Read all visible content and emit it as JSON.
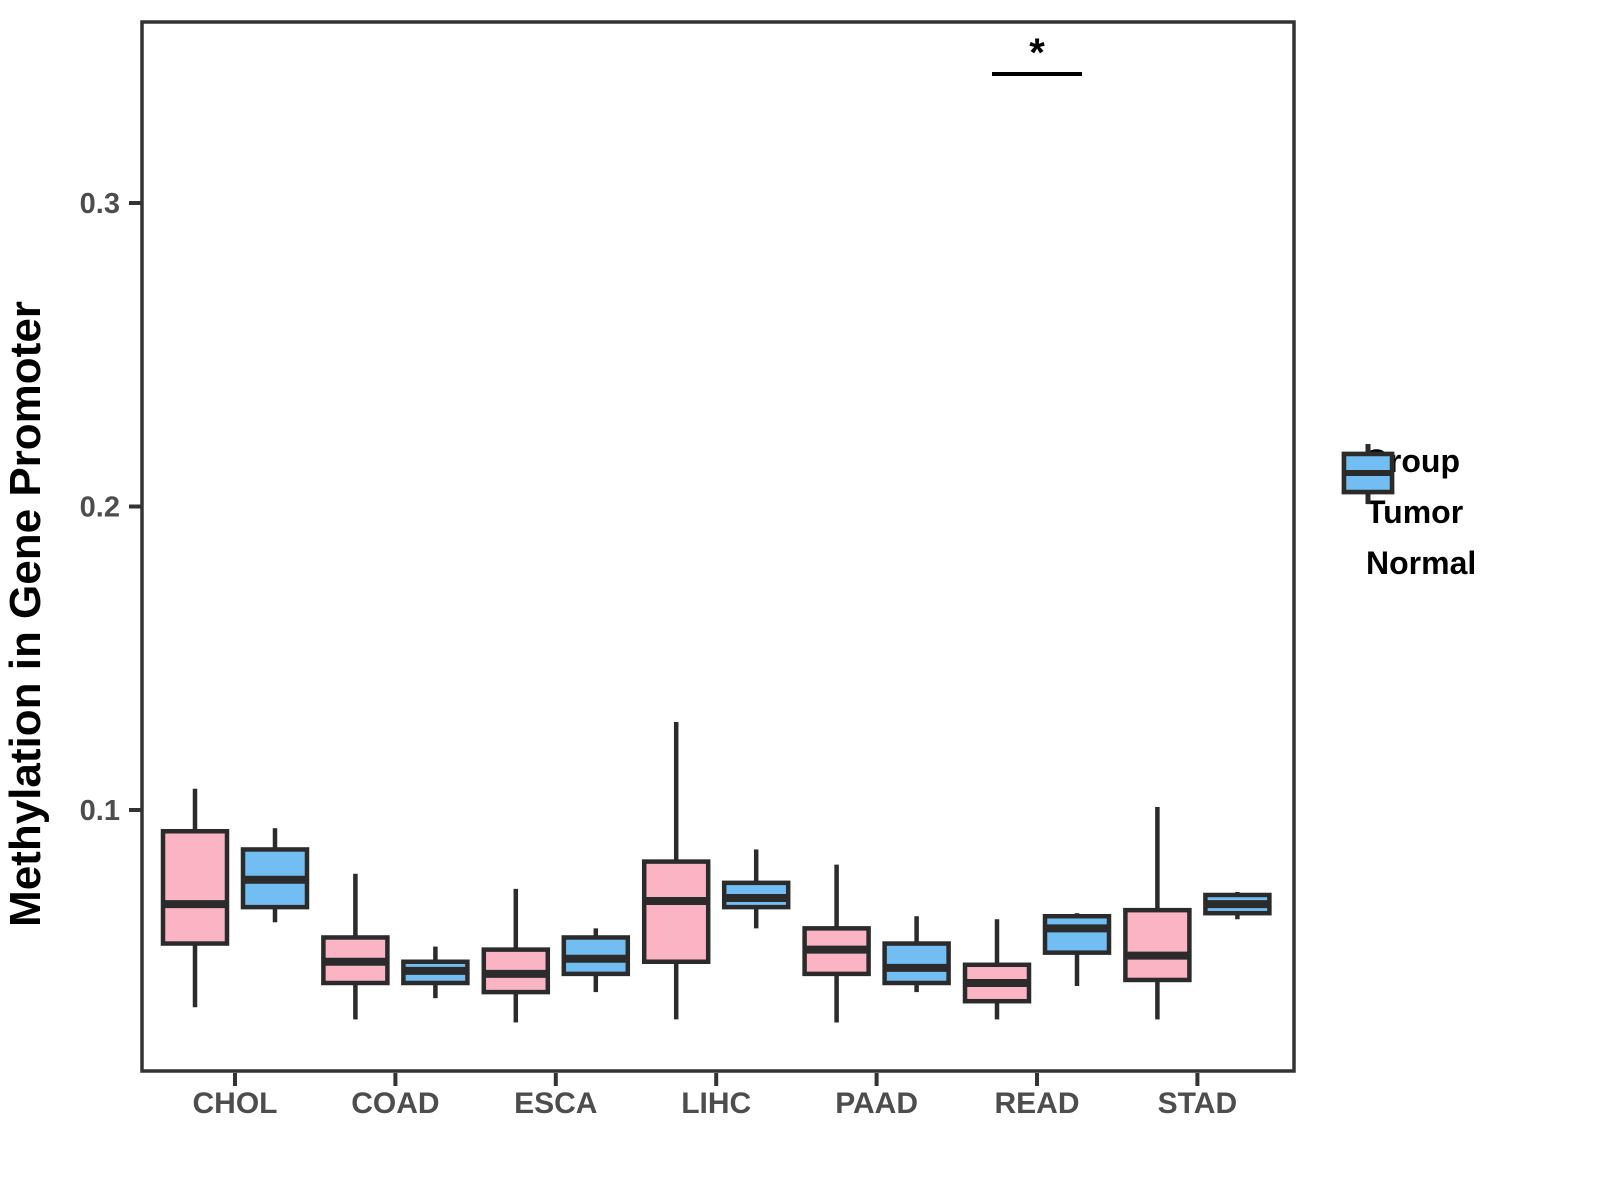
{
  "legend": {
    "title": "Group",
    "entries": [
      {
        "label": "Tumor",
        "color": "#FAB4C4"
      },
      {
        "label": "Normal",
        "color": "#72BEF2"
      }
    ]
  },
  "style_colors": {
    "box_border": "#2B2B2B",
    "axis": "#333333",
    "axis_text": "#4D4D4D",
    "significance": "#000000"
  },
  "chart_data": {
    "type": "boxplot",
    "title": "",
    "xlabel": "",
    "ylabel": "Methylation in Gene Promoter",
    "categories": [
      "CHOL",
      "COAD",
      "ESCA",
      "LIHC",
      "PAAD",
      "READ",
      "STAD"
    ],
    "yticks": [
      0.1,
      0.2,
      0.3
    ],
    "ytick_labels": [
      "0.1",
      "0.2",
      "0.3"
    ],
    "ylim": [
      0.014,
      0.36
    ],
    "grid": "off",
    "legend_position": "right",
    "series": [
      {
        "name": "Tumor",
        "color": "#FAB4C4",
        "boxes": [
          {
            "min": 0.035,
            "q1": 0.056,
            "median": 0.069,
            "q3": 0.093,
            "max": 0.107
          },
          {
            "min": 0.031,
            "q1": 0.043,
            "median": 0.05,
            "q3": 0.058,
            "max": 0.079
          },
          {
            "min": 0.03,
            "q1": 0.04,
            "median": 0.046,
            "q3": 0.054,
            "max": 0.074
          },
          {
            "min": 0.031,
            "q1": 0.05,
            "median": 0.07,
            "q3": 0.083,
            "max": 0.129
          },
          {
            "min": 0.03,
            "q1": 0.046,
            "median": 0.054,
            "q3": 0.061,
            "max": 0.082
          },
          {
            "min": 0.031,
            "q1": 0.037,
            "median": 0.043,
            "q3": 0.049,
            "max": 0.064
          },
          {
            "min": 0.031,
            "q1": 0.044,
            "median": 0.052,
            "q3": 0.067,
            "max": 0.101
          }
        ]
      },
      {
        "name": "Normal",
        "color": "#72BEF2",
        "boxes": [
          {
            "min": 0.063,
            "q1": 0.068,
            "median": 0.077,
            "q3": 0.087,
            "max": 0.094
          },
          {
            "min": 0.038,
            "q1": 0.043,
            "median": 0.047,
            "q3": 0.05,
            "max": 0.055
          },
          {
            "min": 0.04,
            "q1": 0.046,
            "median": 0.051,
            "q3": 0.058,
            "max": 0.061
          },
          {
            "min": 0.061,
            "q1": 0.068,
            "median": 0.071,
            "q3": 0.076,
            "max": 0.087
          },
          {
            "min": 0.04,
            "q1": 0.043,
            "median": 0.048,
            "q3": 0.056,
            "max": 0.065
          },
          {
            "min": 0.042,
            "q1": 0.053,
            "median": 0.061,
            "q3": 0.065,
            "max": 0.066
          },
          {
            "min": 0.064,
            "q1": 0.066,
            "median": 0.069,
            "q3": 0.072,
            "max": 0.073
          }
        ]
      }
    ],
    "annotations": [
      {
        "type": "significance",
        "category": "READ",
        "label": "*",
        "y": 0.3425
      }
    ]
  }
}
